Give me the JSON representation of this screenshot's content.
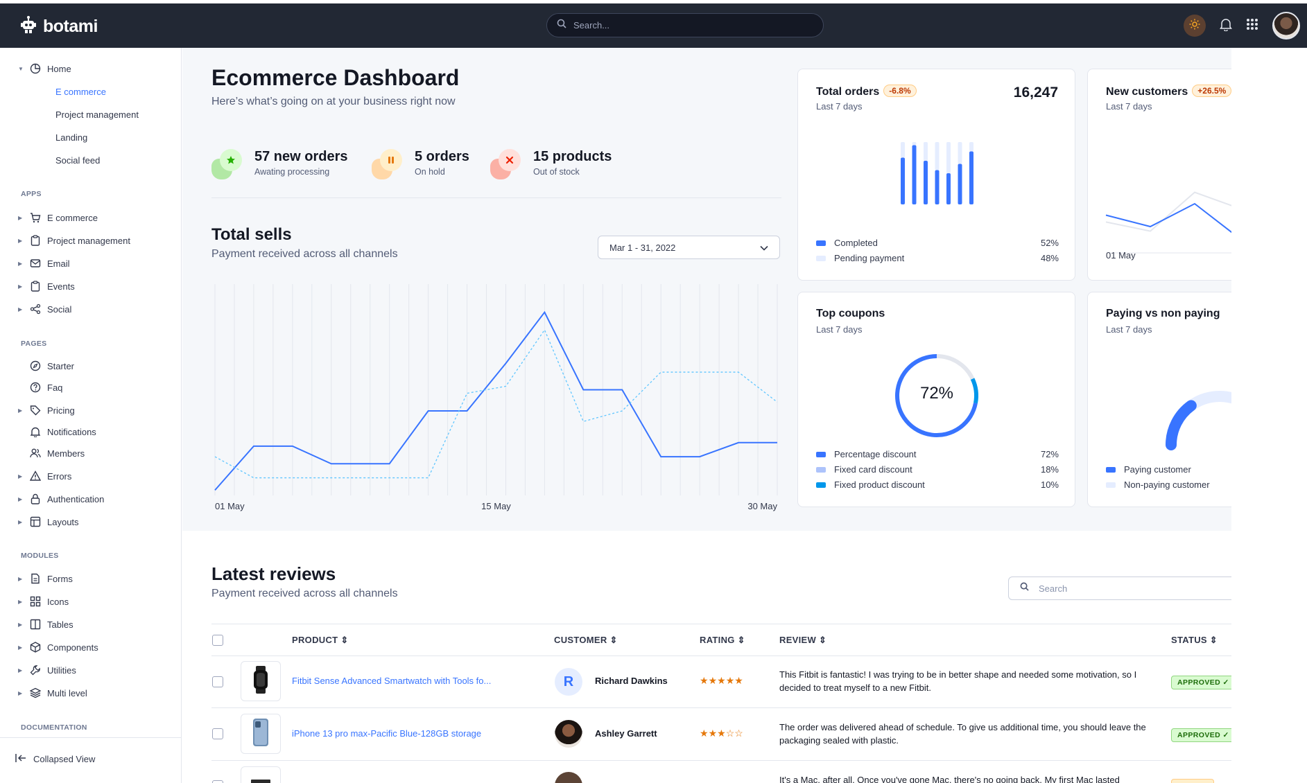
{
  "app": {
    "name": "botami",
    "search_placeholder": "Search..."
  },
  "sidebar": {
    "home": {
      "label": "Home",
      "children": [
        "E commerce",
        "Project management",
        "Landing",
        "Social feed"
      ]
    },
    "sections": [
      {
        "title": "APPS",
        "items": [
          "E commerce",
          "Project management",
          "Email",
          "Events",
          "Social"
        ]
      },
      {
        "title": "PAGES",
        "items": [
          "Starter",
          "Faq",
          "Pricing",
          "Notifications",
          "Members",
          "Errors",
          "Authentication",
          "Layouts"
        ]
      },
      {
        "title": "MODULES",
        "items": [
          "Forms",
          "Icons",
          "Tables",
          "Components",
          "Utilities",
          "Multi level"
        ]
      },
      {
        "title": "DOCUMENTATION",
        "items": []
      }
    ],
    "collapsed_label": "Collapsed View"
  },
  "dashboard": {
    "title": "Ecommerce Dashboard",
    "subtitle": "Here’s what’s going on at your business right now",
    "stats": [
      {
        "title": "57 new orders",
        "sub": "Awating processing",
        "color": "#25b003"
      },
      {
        "title": "5 orders",
        "sub": "On hold",
        "color": "#e5780b"
      },
      {
        "title": "15 products",
        "sub": "Out of stock",
        "color": "#ec1f00"
      }
    ]
  },
  "sells": {
    "title": "Total sells",
    "subtitle": "Payment received across all channels",
    "date_range": "Mar 1 - 31, 2022"
  },
  "chart_data": [
    {
      "type": "line",
      "title": "Total sells",
      "x_ticks": [
        "01 May",
        "15 May",
        "30 May"
      ],
      "x": [
        1,
        3,
        5,
        7,
        10,
        12,
        14,
        16,
        18,
        20,
        22,
        24,
        26,
        28,
        30
      ],
      "series": [
        {
          "values": [
            0.3,
            2.8,
            2.8,
            1.8,
            1.8,
            4.8,
            4.8,
            7.5,
            10.4,
            6,
            6,
            2.2,
            2.2,
            3,
            3
          ]
        },
        {
          "values": [
            2.2,
            1.0,
            1.0,
            1.0,
            1.0,
            1.0,
            5.8,
            6.2,
            9.4,
            4.2,
            4.8,
            7,
            7,
            7,
            5.3
          ]
        }
      ],
      "ylim": [
        0,
        12
      ],
      "grid": true
    },
    {
      "type": "bar",
      "title": "Total orders",
      "series": [
        {
          "name": "Completed",
          "values": [
            75,
            95,
            70,
            55,
            50,
            65,
            85
          ]
        },
        {
          "name": "Pending payment",
          "values": [
            25,
            5,
            30,
            45,
            50,
            35,
            15
          ]
        }
      ]
    },
    {
      "type": "line",
      "title": "New customers",
      "x_ticks": [
        "01 May"
      ],
      "series": [
        {
          "values": [
            45,
            40,
            50,
            35
          ]
        },
        {
          "values": [
            42,
            38,
            55,
            48
          ]
        }
      ]
    },
    {
      "type": "pie",
      "title": "Top coupons",
      "categories": [
        "Percentage discount",
        "Fixed card discount",
        "Fixed product discount"
      ],
      "values": [
        72,
        18,
        10
      ],
      "center_label": "72%"
    },
    {
      "type": "pie",
      "title": "Paying vs non paying",
      "categories": [
        "Paying customer",
        "Non-paying customer"
      ],
      "values": [
        30,
        70
      ]
    }
  ],
  "cards": {
    "orders": {
      "title": "Total orders",
      "badge": "-6.8%",
      "sub": "Last 7 days",
      "value": "16,247",
      "legend": [
        {
          "label": "Completed",
          "value": "52%",
          "color": "#3874ff"
        },
        {
          "label": "Pending payment",
          "value": "48%",
          "color": "#e5edff"
        }
      ]
    },
    "customers": {
      "title": "New customers",
      "badge": "+26.5%",
      "sub": "Last 7 days",
      "tick": "01 May"
    },
    "coupons": {
      "title": "Top coupons",
      "sub": "Last 7 days",
      "center": "72%",
      "legend": [
        {
          "label": "Percentage discount",
          "value": "72%",
          "color": "#3874ff"
        },
        {
          "label": "Fixed card discount",
          "value": "18%",
          "color": "#adc3fb"
        },
        {
          "label": "Fixed product discount",
          "value": "10%",
          "color": "#0097eb"
        }
      ]
    },
    "paying": {
      "title": "Paying vs non paying",
      "sub": "Last 7 days",
      "legend": [
        {
          "label": "Paying customer",
          "color": "#3874ff"
        },
        {
          "label": "Non-paying customer",
          "color": "#e5edff"
        }
      ]
    }
  },
  "reviews": {
    "title": "Latest reviews",
    "subtitle": "Payment received across all channels",
    "search_placeholder": "Search",
    "columns": [
      "PRODUCT",
      "CUSTOMER",
      "RATING",
      "REVIEW",
      "STATUS"
    ],
    "rows": [
      {
        "product": "Fitbit Sense Advanced Smartwatch with Tools fo...",
        "customer": "Richard Dawkins",
        "initial": "R",
        "rating": 5,
        "review": "This Fitbit is fantastic! I was trying to be in better shape and needed some motivation, so I decided to treat myself to a new Fitbit.",
        "status": "APPROVED"
      },
      {
        "product": "iPhone 13 pro max-Pacific Blue-128GB storage",
        "customer": "Ashley Garrett",
        "initial": "",
        "rating": 3,
        "review": "The order was delivered ahead of schedule. To give us additional time, you should leave the packaging sealed with plastic.",
        "status": "APPROVED"
      },
      {
        "product": "",
        "customer": "",
        "initial": "",
        "rating": 0,
        "review": "It's a Mac, after all. Once you've gone Mac, there's no going back. My first Mac lasted",
        "status": ""
      }
    ]
  }
}
